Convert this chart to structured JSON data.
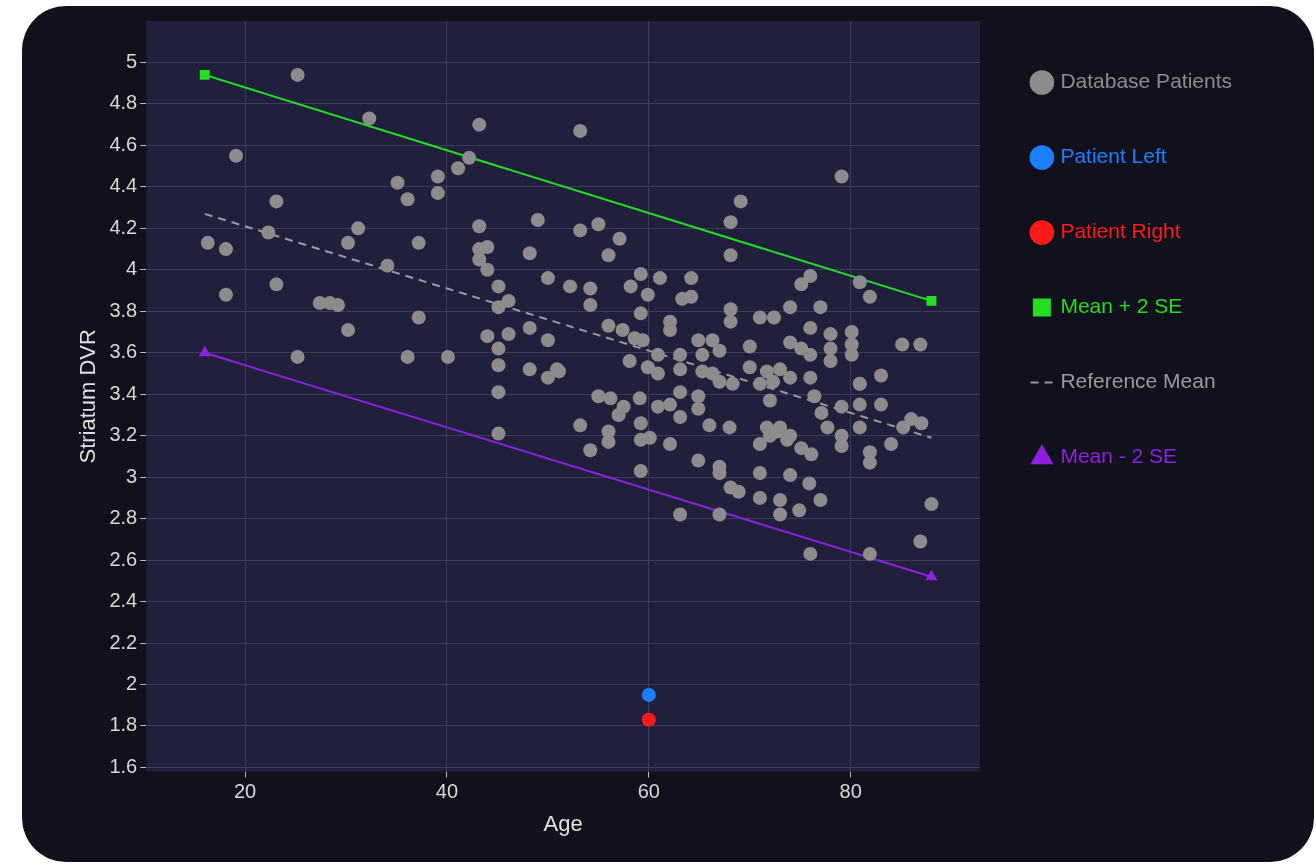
{
  "chart_data": {
    "type": "scatter",
    "xlabel": "Age",
    "ylabel": "Striatum DVR",
    "xlim": [
      10.2,
      92.8
    ],
    "ylim": [
      1.58,
      5.2
    ],
    "xticks": [
      20,
      40,
      60,
      80
    ],
    "yticks": [
      1.6,
      1.8,
      2,
      2.2,
      2.4,
      2.6,
      2.8,
      3,
      3.2,
      3.4,
      3.6,
      3.8,
      4,
      4.2,
      4.4,
      4.6,
      4.8,
      5
    ],
    "grid": true,
    "legend": "right",
    "series": [
      {
        "name": "Database Patients",
        "type": "scatter",
        "marker": "circle",
        "color": "#8c8c8c",
        "x": [
          25.2,
          32.3,
          43.2,
          19.1,
          42.2,
          41.1,
          35.1,
          39.1,
          36.1,
          39.1,
          23.1,
          49.0,
          43.2,
          31.2,
          30.2,
          22.3,
          16.3,
          18.1,
          37.2,
          43.2,
          44.0,
          43.2,
          44.0,
          48.2,
          34.1,
          50.0,
          45.1,
          46.1,
          45.1,
          18.1,
          23.1,
          27.4,
          28.4,
          29.2,
          30.2,
          37.2,
          48.2,
          50.0,
          44.0,
          46.1,
          45.1,
          45.1,
          48.2,
          50.0,
          50.9,
          25.2,
          36.1,
          40.1,
          45.1,
          45.1,
          53.2,
          79.1,
          69.1,
          68.1,
          68.1,
          53.2,
          55.0,
          57.1,
          56.0,
          52.2,
          54.2,
          54.2,
          59.2,
          61.1,
          58.2,
          59.9,
          59.2,
          64.2,
          63.3,
          64.2,
          68.1,
          68.1,
          62.1,
          62.1,
          56.0,
          57.4,
          58.6,
          59.4,
          71.0,
          72.4,
          74.0,
          75.1,
          76.0,
          77.0,
          80.9,
          81.9,
          76.0,
          78.0,
          78.0,
          78.0,
          80.1,
          80.1,
          80.1,
          85.1,
          86.9,
          83.0,
          80.9,
          74.0,
          75.1,
          76.0,
          70.0,
          70.0,
          64.9,
          66.3,
          67.0,
          65.3,
          60.9,
          63.1,
          58.1,
          63.1,
          59.9,
          60.9,
          51.1,
          65.3,
          66.3,
          71.7,
          73.0,
          74.0,
          76.0,
          55.0,
          56.2,
          57.5,
          59.1,
          57.0,
          53.2,
          54.2,
          56.0,
          56.0,
          59.2,
          59.2,
          60.1,
          59.2,
          60.9,
          62.1,
          63.1,
          63.1,
          62.1,
          64.9,
          64.9,
          66.0,
          68.0,
          64.9,
          67.0,
          67.0,
          68.1,
          68.9,
          63.1,
          67.0,
          72.0,
          73.0,
          72.0,
          71.0,
          74.0,
          75.1,
          76.1,
          71.0,
          74.0,
          75.9,
          77.0,
          71.0,
          73.0,
          73.0,
          74.9,
          76.0,
          81.9,
          86.9,
          88.0,
          77.1,
          76.4,
          79.1,
          80.9,
          83.0,
          80.9,
          81.9,
          81.9,
          84.0,
          85.2,
          86.0,
          87.0,
          77.7,
          79.1,
          79.1,
          80.9,
          71.7,
          72.7,
          73.7,
          68.3,
          71.0,
          72.3,
          67.0
        ],
        "values": [
          4.94,
          4.73,
          4.7,
          4.55,
          4.54,
          4.49,
          4.42,
          4.45,
          4.34,
          4.37,
          4.33,
          4.24,
          4.21,
          4.2,
          4.13,
          4.18,
          4.13,
          4.1,
          4.13,
          4.1,
          4.11,
          4.05,
          4.0,
          4.08,
          4.02,
          3.96,
          3.92,
          3.85,
          3.82,
          3.88,
          3.93,
          3.84,
          3.84,
          3.83,
          3.71,
          3.77,
          3.72,
          3.66,
          3.68,
          3.69,
          3.62,
          3.54,
          3.52,
          3.48,
          3.52,
          3.58,
          3.58,
          3.58,
          3.41,
          3.21,
          4.67,
          4.45,
          4.33,
          4.23,
          4.07,
          4.19,
          4.22,
          4.15,
          4.07,
          3.92,
          3.91,
          3.83,
          3.98,
          3.96,
          3.92,
          3.88,
          3.79,
          3.96,
          3.86,
          3.87,
          3.81,
          3.75,
          3.75,
          3.71,
          3.73,
          3.71,
          3.67,
          3.66,
          3.77,
          3.77,
          3.82,
          3.93,
          3.97,
          3.82,
          3.94,
          3.87,
          3.72,
          3.69,
          3.62,
          3.56,
          3.7,
          3.64,
          3.59,
          3.64,
          3.64,
          3.49,
          3.45,
          3.65,
          3.62,
          3.59,
          3.63,
          3.53,
          3.66,
          3.66,
          3.61,
          3.59,
          3.59,
          3.59,
          3.56,
          3.52,
          3.53,
          3.5,
          3.51,
          3.51,
          3.5,
          3.51,
          3.52,
          3.48,
          3.48,
          3.39,
          3.38,
          3.34,
          3.38,
          3.3,
          3.25,
          3.13,
          3.22,
          3.17,
          3.26,
          3.18,
          3.19,
          3.03,
          3.34,
          3.35,
          3.41,
          3.29,
          3.16,
          3.39,
          3.33,
          3.25,
          3.24,
          3.08,
          3.05,
          3.02,
          2.95,
          2.93,
          2.82,
          2.82,
          3.37,
          3.24,
          3.2,
          3.16,
          3.2,
          3.14,
          3.11,
          3.02,
          3.01,
          2.97,
          2.89,
          2.9,
          2.89,
          2.82,
          2.84,
          2.63,
          2.63,
          2.69,
          2.87,
          3.31,
          3.39,
          3.34,
          3.35,
          3.35,
          3.24,
          3.12,
          3.07,
          3.16,
          3.24,
          3.28,
          3.26,
          3.24,
          3.2,
          3.15,
          3.45,
          3.24,
          3.22,
          3.18,
          3.45,
          3.45,
          3.46,
          3.46
        ]
      },
      {
        "name": "Patient Left",
        "type": "scatter",
        "marker": "circle",
        "color": "#1a80ff",
        "x": [
          60
        ],
        "values": [
          1.95
        ]
      },
      {
        "name": "Patient Right",
        "type": "scatter",
        "marker": "circle",
        "color": "#ff1a1a",
        "x": [
          60
        ],
        "values": [
          1.83
        ]
      },
      {
        "name": "Mean + 2 SE",
        "type": "line",
        "marker": "square",
        "line_style": "solid",
        "color": "#22dd22",
        "x": [
          16,
          88
        ],
        "values": [
          4.94,
          3.85
        ]
      },
      {
        "name": "Reference Mean",
        "type": "line",
        "marker": "none",
        "line_style": "dashed",
        "color": "#9a9a9a",
        "x": [
          16,
          88
        ],
        "values": [
          4.27,
          3.19
        ]
      },
      {
        "name": "Mean - 2 SE",
        "type": "line",
        "marker": "triangle",
        "line_style": "solid",
        "color": "#9020e0",
        "x": [
          16,
          88
        ],
        "values": [
          3.6,
          2.52
        ]
      }
    ]
  }
}
